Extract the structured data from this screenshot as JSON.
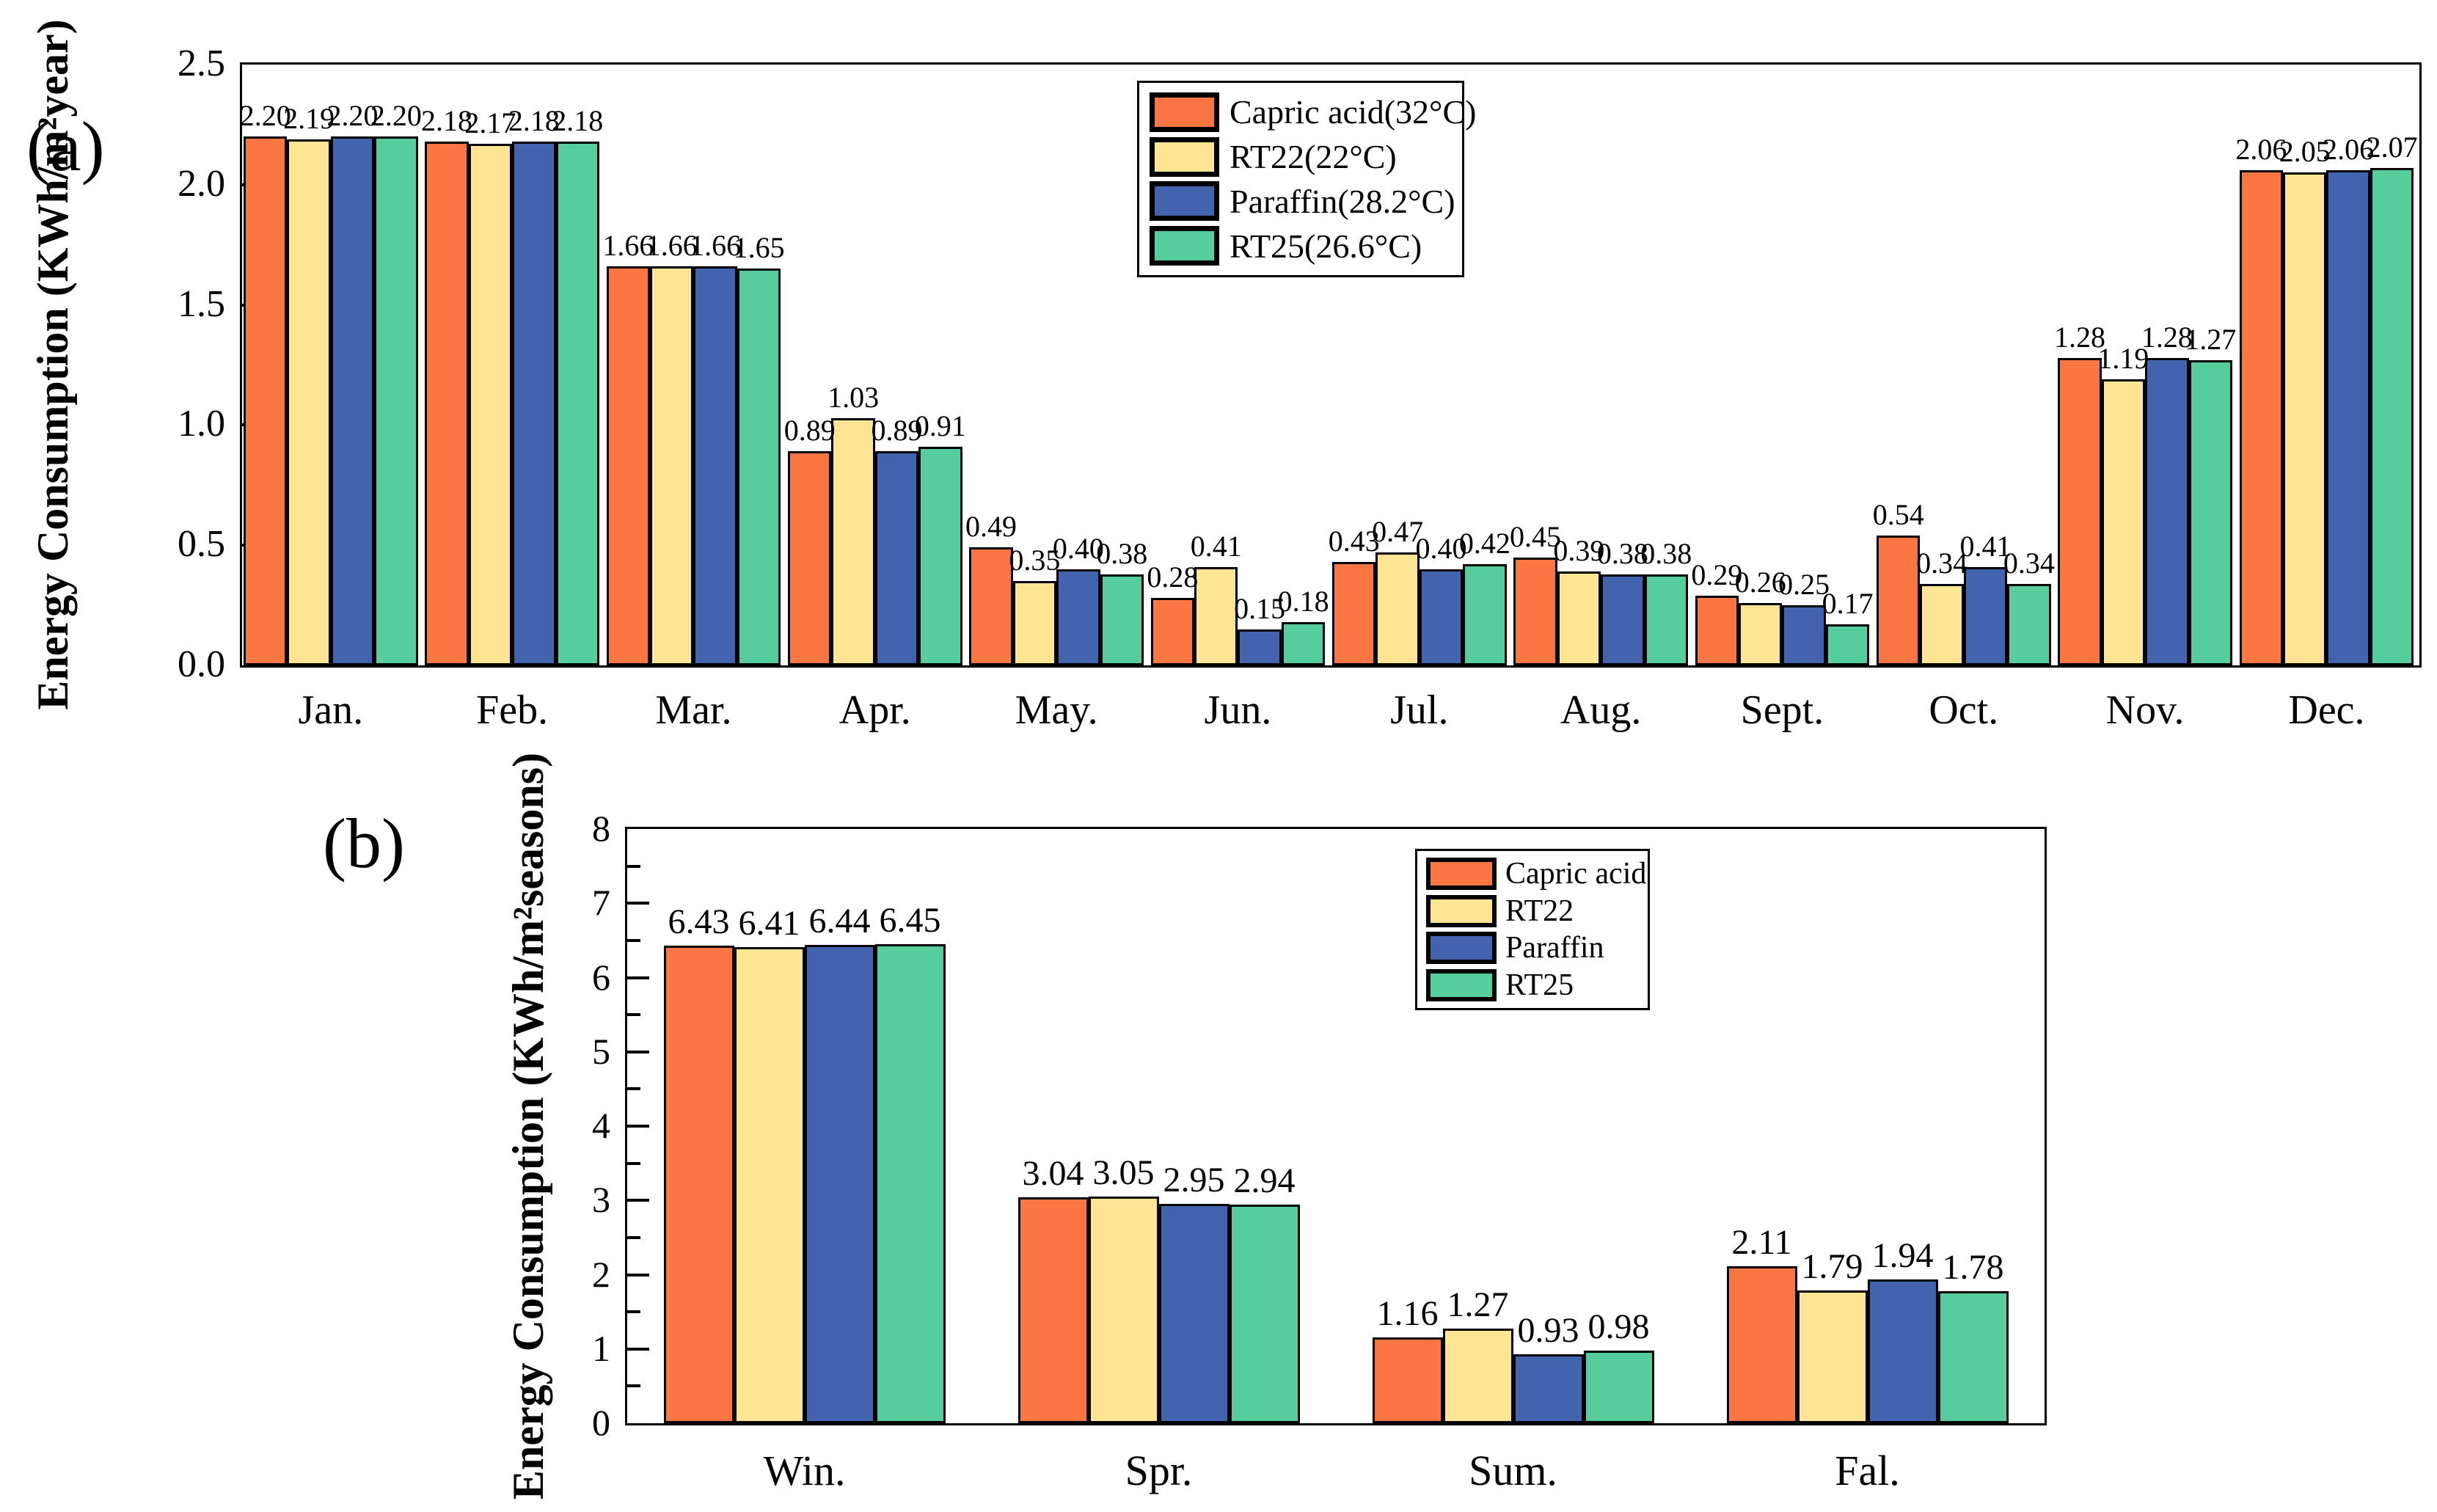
{
  "figure": {
    "background": "#ffffff",
    "outline_color": "#000000"
  },
  "chart_data": [
    {
      "tag": "(a)",
      "type": "bar",
      "title": "",
      "xlabel": "",
      "ylabel": "Energy Consumption (KWh/m²year)",
      "ylim": [
        0,
        2.5
      ],
      "ytick_labels": [
        "0.0",
        "0.5",
        "1.0",
        "1.5",
        "2.0",
        "2.5"
      ],
      "minor_ticks": false,
      "grid": false,
      "legend_position": "top-center-inside",
      "value_label_decimals": 2,
      "categories": [
        "Jan.",
        "Feb.",
        "Mar.",
        "Apr.",
        "May.",
        "Jun.",
        "Jul.",
        "Aug.",
        "Sept.",
        "Oct.",
        "Nov.",
        "Dec."
      ],
      "series": [
        {
          "name": "Capric acid(32°C)",
          "color": "#FC7644",
          "values": [
            2.2,
            2.18,
            1.66,
            0.89,
            0.49,
            0.28,
            0.43,
            0.45,
            0.29,
            0.54,
            1.28,
            2.06
          ]
        },
        {
          "name": "RT22(22°C)",
          "color": "#FEE593",
          "values": [
            2.19,
            2.17,
            1.66,
            1.03,
            0.35,
            0.41,
            0.47,
            0.39,
            0.26,
            0.34,
            1.19,
            2.05
          ]
        },
        {
          "name": "Paraffin(28.2°C)",
          "color": "#4264AF",
          "values": [
            2.2,
            2.18,
            1.66,
            0.89,
            0.4,
            0.15,
            0.4,
            0.38,
            0.25,
            0.41,
            1.28,
            2.06
          ]
        },
        {
          "name": "RT25(26.6°C)",
          "color": "#55CD9D",
          "values": [
            2.2,
            2.18,
            1.65,
            0.91,
            0.38,
            0.18,
            0.42,
            0.38,
            0.17,
            0.34,
            1.27,
            2.07
          ]
        }
      ]
    },
    {
      "tag": "(b)",
      "type": "bar",
      "title": "",
      "xlabel": "",
      "ylabel": "Energy Consumption (KWh/m²seasons)",
      "ylim": [
        0,
        8
      ],
      "ytick_labels": [
        "0",
        "1",
        "2",
        "3",
        "4",
        "5",
        "6",
        "7",
        "8"
      ],
      "minor_ticks": true,
      "grid": false,
      "legend_position": "top-right-inside",
      "value_label_decimals": 2,
      "categories": [
        "Win.",
        "Spr.",
        "Sum.",
        "Fal."
      ],
      "series": [
        {
          "name": "Capric acid",
          "color": "#FC7644",
          "values": [
            6.43,
            3.04,
            1.16,
            2.11
          ]
        },
        {
          "name": "RT22",
          "color": "#FEE593",
          "values": [
            6.41,
            3.05,
            1.27,
            1.79
          ]
        },
        {
          "name": "Paraffin",
          "color": "#4264AF",
          "values": [
            6.44,
            2.95,
            0.93,
            1.94
          ]
        },
        {
          "name": "RT25",
          "color": "#55CD9D",
          "values": [
            6.45,
            2.94,
            0.98,
            1.78
          ]
        }
      ]
    }
  ]
}
